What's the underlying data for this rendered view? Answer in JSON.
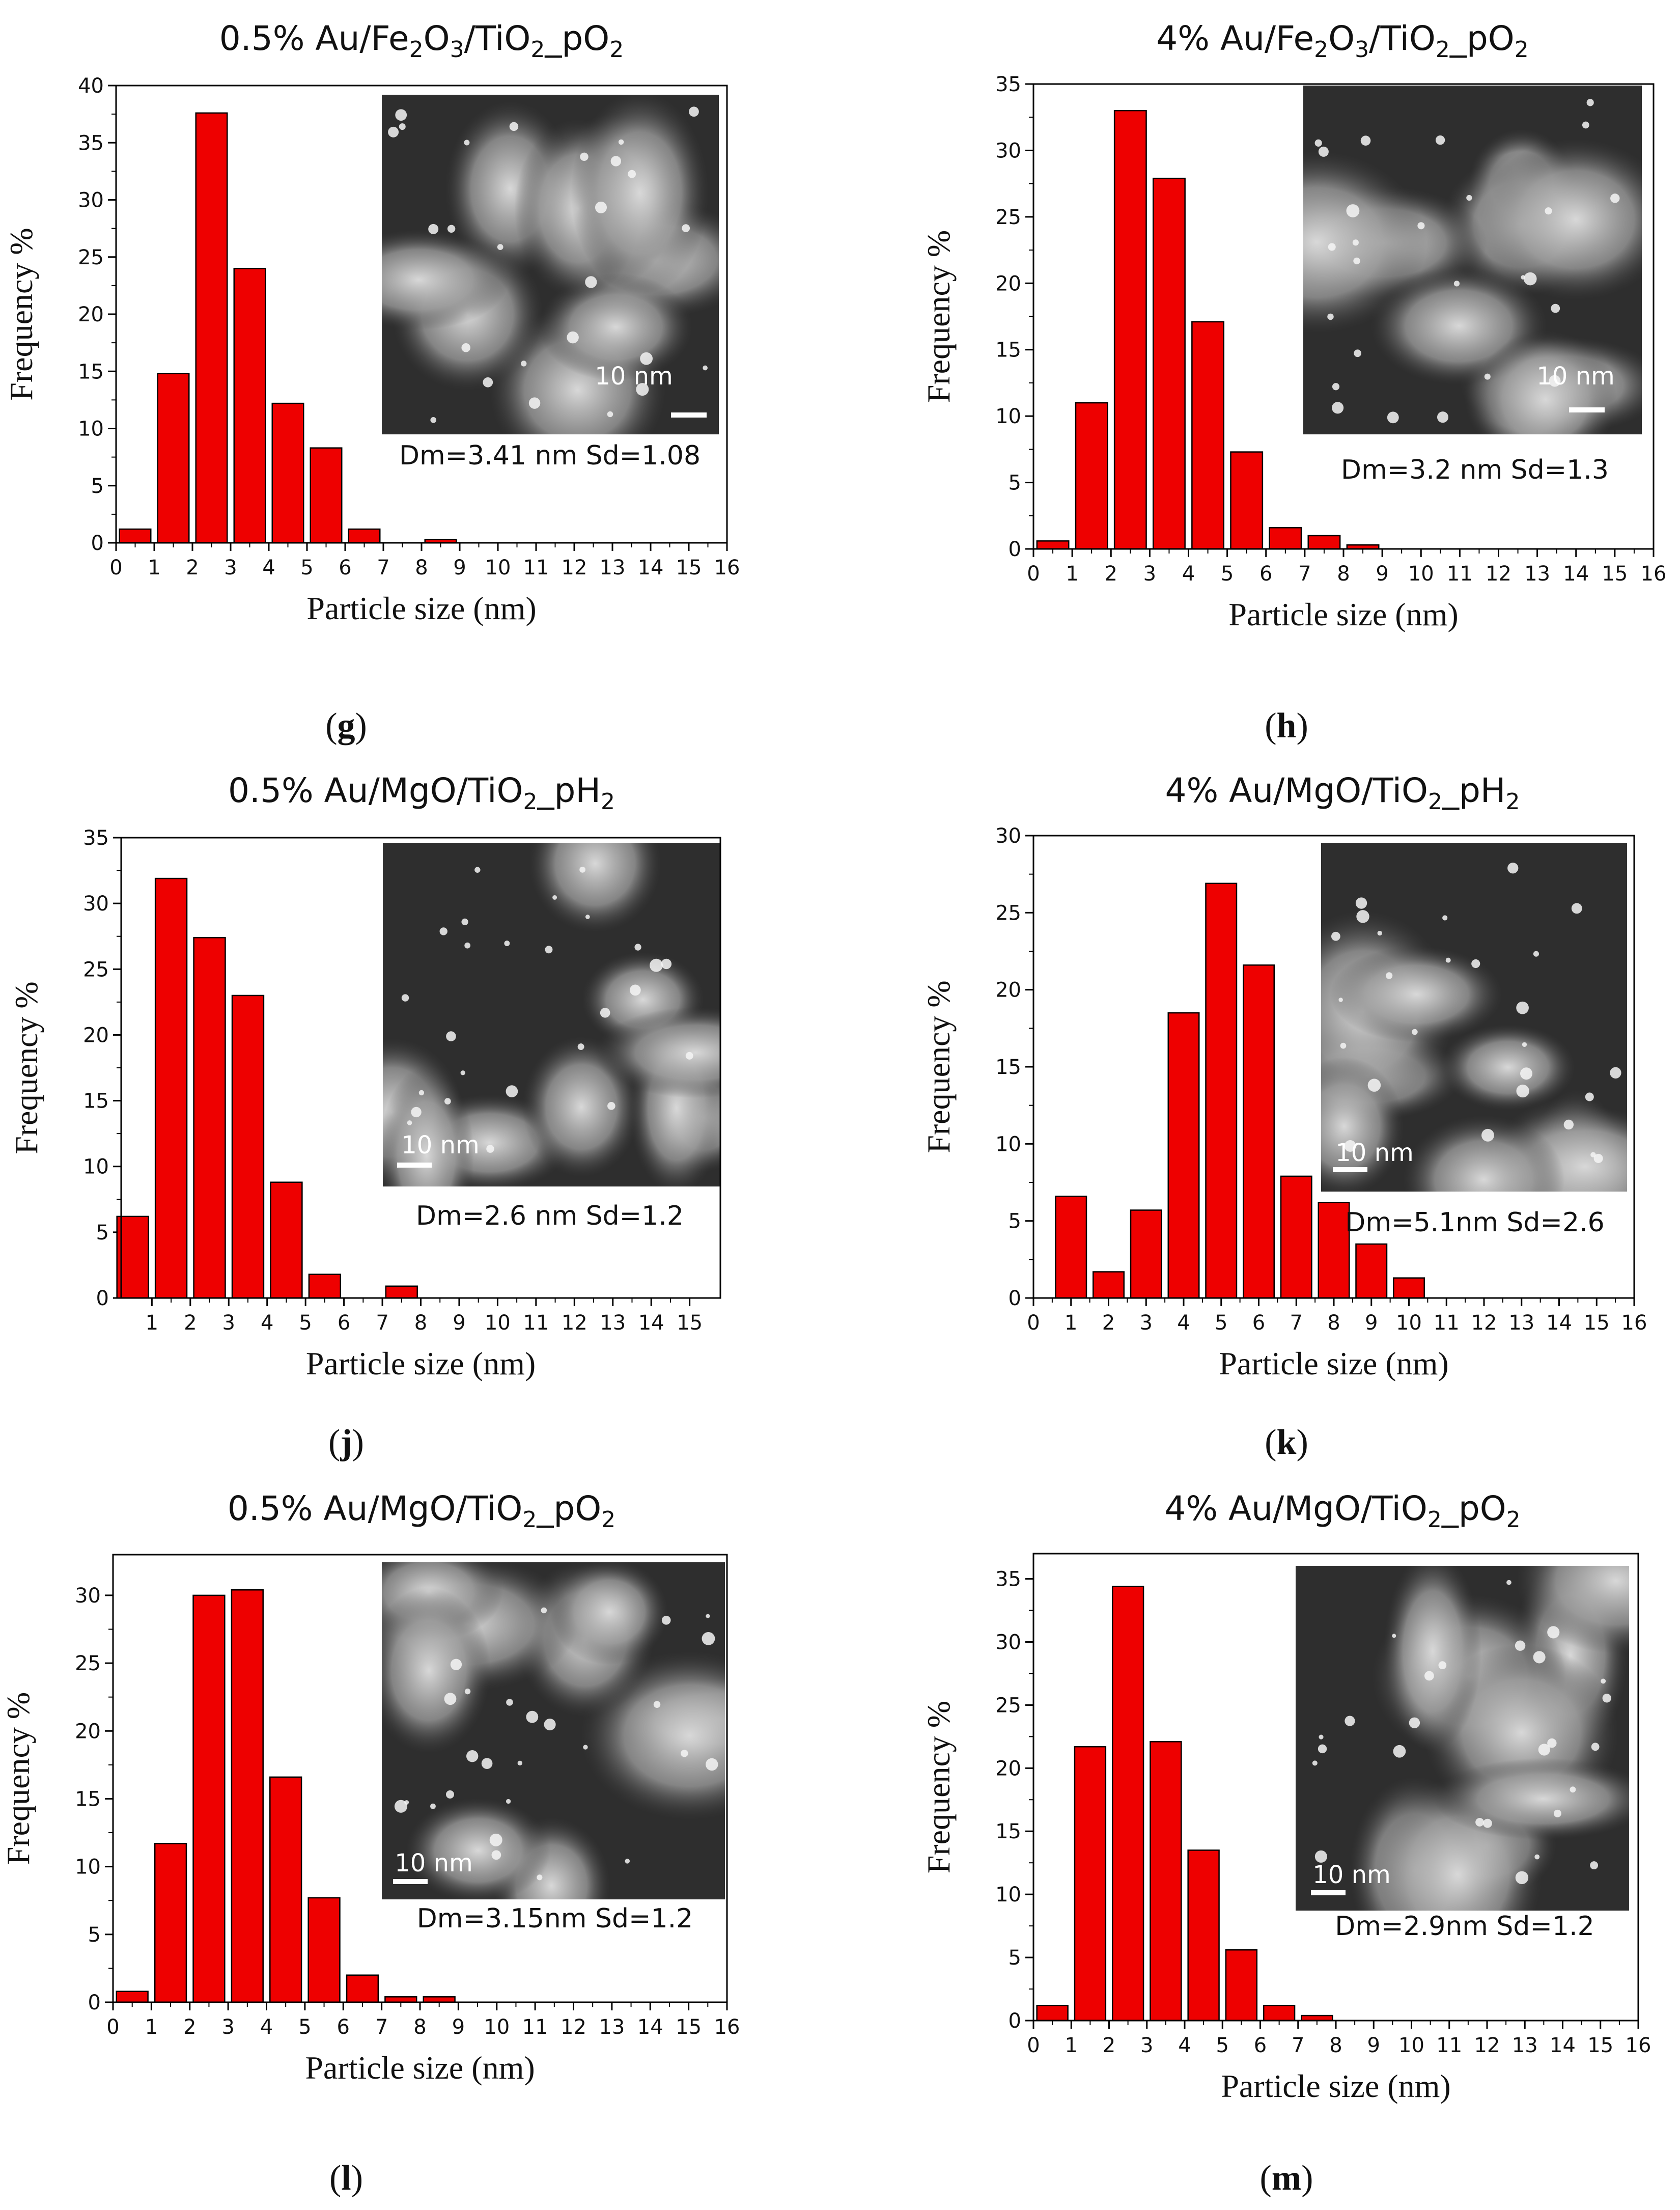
{
  "panels": [
    {
      "id": "g",
      "title": {
        "pre": "0.5% Au/Fe",
        "s1": "2",
        "mid1": "O",
        "s2": "3",
        "mid2": "/TiO",
        "s3": "2",
        "post": "_pO",
        "s4": "2"
      },
      "letter": "g",
      "stats": "Dm=3.41 nm  Sd=1.08",
      "scale_label": "10 nm",
      "chart_data": {
        "type": "bar",
        "title": "0.5% Au/Fe2O3/TiO2_pO2",
        "xlabel": "Particle size (nm)",
        "ylabel": "Frequency %",
        "xlim": [
          0,
          16
        ],
        "ylim": [
          0,
          40
        ],
        "xticks": [
          0,
          1,
          2,
          3,
          4,
          5,
          6,
          7,
          8,
          9,
          10,
          11,
          12,
          13,
          14,
          15,
          16
        ],
        "yticks": [
          0,
          5,
          10,
          15,
          20,
          25,
          30,
          35,
          40
        ],
        "x": [
          0.5,
          1.5,
          2.5,
          3.5,
          4.5,
          5.5,
          6.5,
          8.5
        ],
        "values": [
          1.2,
          14.8,
          37.6,
          24.0,
          12.2,
          8.3,
          1.2,
          0.3
        ]
      }
    },
    {
      "id": "h",
      "title": {
        "pre": "4% Au/Fe",
        "s1": "2",
        "mid1": "O",
        "s2": "3",
        "mid2": "/TiO",
        "s3": "2",
        "post": "_pO",
        "s4": "2"
      },
      "letter": "h",
      "stats": "Dm=3.2 nm  Sd=1.3",
      "scale_label": "10 nm",
      "chart_data": {
        "type": "bar",
        "title": "4% Au/Fe2O3/TiO2_pO2",
        "xlabel": "Particle size (nm)",
        "ylabel": "Frequency %",
        "xlim": [
          0,
          16
        ],
        "ylim": [
          0,
          35
        ],
        "xticks": [
          0,
          1,
          2,
          3,
          4,
          5,
          6,
          7,
          8,
          9,
          10,
          11,
          12,
          13,
          14,
          15,
          16
        ],
        "yticks": [
          0,
          5,
          10,
          15,
          20,
          25,
          30,
          35
        ],
        "x": [
          0.5,
          1.5,
          2.5,
          3.5,
          4.5,
          5.5,
          6.5,
          7.5,
          8.5
        ],
        "values": [
          0.6,
          11.0,
          33.0,
          27.9,
          17.1,
          7.3,
          1.6,
          1.0,
          0.3
        ]
      }
    },
    {
      "id": "j",
      "title": {
        "pre": "0.5% Au/MgO/TiO",
        "s1": "2",
        "post": "_pH",
        "s2": "2"
      },
      "letter": "j",
      "stats": "Dm=2.6 nm  Sd=1.2",
      "scale_label": "10 nm",
      "chart_data": {
        "type": "bar",
        "title": "0.5% Au/MgO/TiO2_pH2",
        "xlabel": "Particle size (nm)",
        "ylabel": "Frequency %",
        "xlim": [
          0.2,
          15.8
        ],
        "ylim": [
          0,
          35
        ],
        "xticks": [
          1,
          2,
          3,
          4,
          5,
          6,
          7,
          8,
          9,
          10,
          11,
          12,
          13,
          14,
          15
        ],
        "yticks": [
          0,
          5,
          10,
          15,
          20,
          25,
          30,
          35
        ],
        "x": [
          0.5,
          1.5,
          2.5,
          3.5,
          4.5,
          5.5,
          7.5
        ],
        "values": [
          6.2,
          31.9,
          27.4,
          23.0,
          8.8,
          1.8,
          0.9
        ]
      }
    },
    {
      "id": "k",
      "title": {
        "pre": "4% Au/MgO/TiO",
        "s1": "2",
        "post": "_pH",
        "s2": "2"
      },
      "letter": "k",
      "stats": "Dm=5.1nm  Sd=2.6",
      "scale_label": "10 nm",
      "chart_data": {
        "type": "bar",
        "title": "4% Au/MgO/TiO2_pH2",
        "xlabel": "Particle size (nm)",
        "ylabel": "Frequency %",
        "xlim": [
          0,
          16
        ],
        "ylim": [
          0,
          30
        ],
        "xticks": [
          0,
          1,
          2,
          3,
          4,
          5,
          6,
          7,
          8,
          9,
          10,
          11,
          12,
          13,
          14,
          15,
          16
        ],
        "yticks": [
          0,
          5,
          10,
          15,
          20,
          25,
          30
        ],
        "x": [
          1,
          2,
          3,
          4,
          5,
          6,
          7,
          8,
          9,
          10
        ],
        "values": [
          6.6,
          1.7,
          5.7,
          18.5,
          26.9,
          21.6,
          7.9,
          6.2,
          3.5,
          1.3
        ]
      }
    },
    {
      "id": "l",
      "title": {
        "pre": "0.5% Au/MgO/TiO",
        "s1": "2",
        "post": "_pO",
        "s2": "2"
      },
      "letter": "l",
      "stats": "Dm=3.15nm  Sd=1.2",
      "scale_label": "10 nm",
      "chart_data": {
        "type": "bar",
        "title": "0.5% Au/MgO/TiO2_pO2",
        "xlabel": "Particle size (nm)",
        "ylabel": "Frequency %",
        "xlim": [
          0,
          16
        ],
        "ylim": [
          0,
          33
        ],
        "xticks": [
          0,
          1,
          2,
          3,
          4,
          5,
          6,
          7,
          8,
          9,
          10,
          11,
          12,
          13,
          14,
          15,
          16
        ],
        "yticks": [
          0,
          5,
          10,
          15,
          20,
          25,
          30
        ],
        "x": [
          0.5,
          1.5,
          2.5,
          3.5,
          4.5,
          5.5,
          6.5,
          7.5,
          8.5
        ],
        "values": [
          0.8,
          11.7,
          30.0,
          30.4,
          16.6,
          7.7,
          2.0,
          0.4,
          0.4
        ]
      }
    },
    {
      "id": "m",
      "title": {
        "pre": "4% Au/MgO/TiO",
        "s1": "2",
        "post": "_pO",
        "s2": "2"
      },
      "letter": "m",
      "stats": "Dm=2.9nm  Sd=1.2",
      "scale_label": "10 nm",
      "chart_data": {
        "type": "bar",
        "title": "4% Au/MgO/TiO2_pO2",
        "xlabel": "Particle size (nm)",
        "ylabel": "Frequency %",
        "xlim": [
          0,
          16
        ],
        "ylim": [
          0,
          37
        ],
        "xticks": [
          0,
          1,
          2,
          3,
          4,
          5,
          6,
          7,
          8,
          9,
          10,
          11,
          12,
          13,
          14,
          15,
          16
        ],
        "yticks": [
          0,
          5,
          10,
          15,
          20,
          25,
          30,
          35
        ],
        "x": [
          0.5,
          1.5,
          2.5,
          3.5,
          4.5,
          5.5,
          6.5,
          7.5
        ],
        "values": [
          1.2,
          21.7,
          34.4,
          22.1,
          13.5,
          5.6,
          1.2,
          0.4
        ]
      }
    }
  ]
}
